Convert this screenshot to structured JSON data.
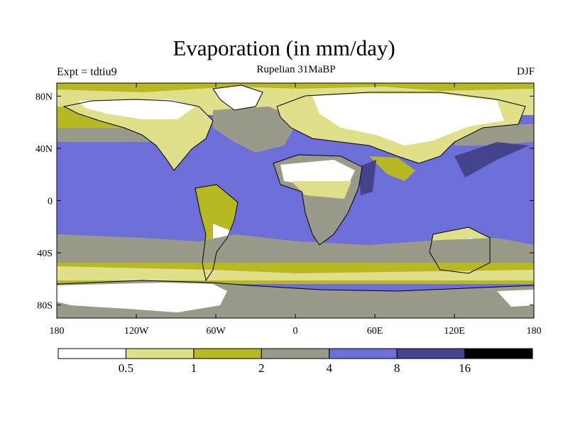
{
  "map": {
    "title": "Evaporation (in mm/day)",
    "subtitle": "Rupelian  31MaBP",
    "left_label": "Expt = tdtiu9",
    "season_label": "DJF",
    "projection": "cylindrical-equidistant",
    "lon_range": [
      -180,
      180
    ],
    "lat_range": [
      -90,
      90
    ],
    "x_ticks": [
      {
        "value": -180,
        "label": "180"
      },
      {
        "value": -120,
        "label": "120W"
      },
      {
        "value": -60,
        "label": "60W"
      },
      {
        "value": 0,
        "label": "0"
      },
      {
        "value": 60,
        "label": "60E"
      },
      {
        "value": 120,
        "label": "120E"
      },
      {
        "value": 180,
        "label": "180"
      }
    ],
    "y_ticks": [
      {
        "value": 80,
        "label": "80N"
      },
      {
        "value": 40,
        "label": "40N"
      },
      {
        "value": 0,
        "label": "0"
      },
      {
        "value": -40,
        "label": "40S"
      },
      {
        "value": -80,
        "label": "80S"
      }
    ],
    "legend": {
      "colors": [
        "#ffffff",
        "#e0e08a",
        "#b8b822",
        "#9a9a8a",
        "#6e6ed8",
        "#44448c",
        "#000000"
      ],
      "boundaries": [
        "0.5",
        "1",
        "2",
        "4",
        "8",
        "16"
      ]
    },
    "palette": {
      "white": "#ffffff",
      "light_yellow": "#e0e08a",
      "olive": "#b8b822",
      "gray": "#9a9a8a",
      "blue": "#6e6ed8",
      "dark_blue": "#44448c"
    }
  }
}
